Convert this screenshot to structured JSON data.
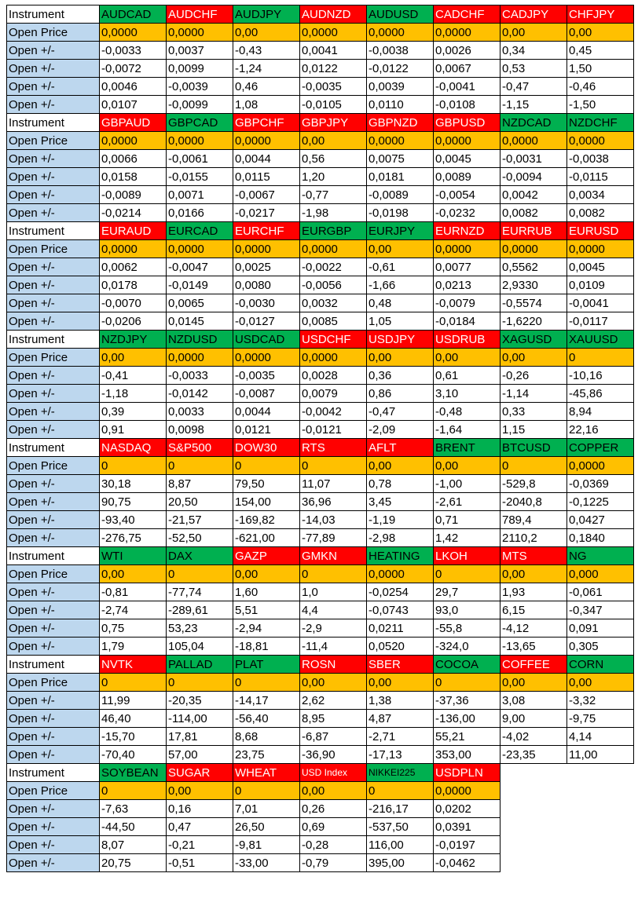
{
  "row_labels": {
    "instrument": "Instrument",
    "open_price": "Open Price",
    "delta": "Open +/-"
  },
  "colors": {
    "label_blue": "#bdd7ee",
    "instrument_red": "#ff0000",
    "instrument_green": "#00b050",
    "open_price_orange": "#ffc000"
  },
  "blocks": [
    {
      "instruments": [
        {
          "name": "AUDCAD",
          "color": "green",
          "open": "0,0000"
        },
        {
          "name": "AUDCHF",
          "color": "red",
          "open": "0,0000"
        },
        {
          "name": "AUDJPY",
          "color": "green",
          "open": "0,00"
        },
        {
          "name": "AUDNZD",
          "color": "red",
          "open": "0,0000"
        },
        {
          "name": "AUDUSD",
          "color": "green",
          "open": "0,0000"
        },
        {
          "name": "CADCHF",
          "color": "red",
          "open": "0,0000"
        },
        {
          "name": "CADJPY",
          "color": "red",
          "open": "0,00"
        },
        {
          "name": "CHFJPY",
          "color": "red",
          "open": "0,00"
        }
      ],
      "rows": [
        [
          "-0,0033",
          "0,0037",
          "-0,43",
          "0,0041",
          "-0,0038",
          "0,0026",
          "0,34",
          "0,45"
        ],
        [
          "-0,0072",
          "0,0099",
          "-1,24",
          "0,0122",
          "-0,0122",
          "0,0067",
          "0,53",
          "1,50"
        ],
        [
          "0,0046",
          "-0,0039",
          "0,46",
          "-0,0035",
          "0,0039",
          "-0,0041",
          "-0,47",
          "-0,46"
        ],
        [
          "0,0107",
          "-0,0099",
          "1,08",
          "-0,0105",
          "0,0110",
          "-0,0108",
          "-1,15",
          "-1,50"
        ]
      ]
    },
    {
      "instruments": [
        {
          "name": "GBPAUD",
          "color": "red",
          "open": "0,0000"
        },
        {
          "name": "GBPCAD",
          "color": "green",
          "open": "0,0000"
        },
        {
          "name": "GBPCHF",
          "color": "red",
          "open": "0,0000"
        },
        {
          "name": "GBPJPY",
          "color": "red",
          "open": "0,00"
        },
        {
          "name": "GBPNZD",
          "color": "red",
          "open": "0,0000"
        },
        {
          "name": "GBPUSD",
          "color": "red",
          "open": "0,0000"
        },
        {
          "name": "NZDCAD",
          "color": "green",
          "open": "0,0000"
        },
        {
          "name": "NZDCHF",
          "color": "green",
          "open": "0,0000"
        }
      ],
      "rows": [
        [
          "0,0066",
          "-0,0061",
          "0,0044",
          "0,56",
          "0,0075",
          "0,0045",
          "-0,0031",
          "-0,0038"
        ],
        [
          "0,0158",
          "-0,0155",
          "0,0115",
          "1,20",
          "0,0181",
          "0,0089",
          "-0,0094",
          "-0,0115"
        ],
        [
          "-0,0089",
          "0,0071",
          "-0,0067",
          "-0,77",
          "-0,0089",
          "-0,0054",
          "0,0042",
          "0,0034"
        ],
        [
          "-0,0214",
          "0,0166",
          "-0,0217",
          "-1,98",
          "-0,0198",
          "-0,0232",
          "0,0082",
          "0,0082"
        ]
      ]
    },
    {
      "instruments": [
        {
          "name": "EURAUD",
          "color": "red",
          "open": "0,0000"
        },
        {
          "name": "EURCAD",
          "color": "green",
          "open": "0,0000"
        },
        {
          "name": "EURCHF",
          "color": "red",
          "open": "0,0000"
        },
        {
          "name": "EURGBP",
          "color": "green",
          "open": "0,0000"
        },
        {
          "name": "EURJPY",
          "color": "green",
          "open": "0,00"
        },
        {
          "name": "EURNZD",
          "color": "red",
          "open": "0,0000"
        },
        {
          "name": "EURRUB",
          "color": "red",
          "open": "0,0000"
        },
        {
          "name": "EURUSD",
          "color": "red",
          "open": "0,0000"
        }
      ],
      "rows": [
        [
          "0,0062",
          "-0,0047",
          "0,0025",
          "-0,0022",
          "-0,61",
          "0,0077",
          "0,5562",
          "0,0045"
        ],
        [
          "0,0178",
          "-0,0149",
          "0,0080",
          "-0,0056",
          "-1,66",
          "0,0213",
          "2,9330",
          "0,0109"
        ],
        [
          "-0,0070",
          "0,0065",
          "-0,0030",
          "0,0032",
          "0,48",
          "-0,0079",
          "-0,5574",
          "-0,0041"
        ],
        [
          "-0,0206",
          "0,0145",
          "-0,0127",
          "0,0085",
          "1,05",
          "-0,0184",
          "-1,6220",
          "-0,0117"
        ]
      ]
    },
    {
      "instruments": [
        {
          "name": "NZDJPY",
          "color": "green",
          "open": "0,00"
        },
        {
          "name": "NZDUSD",
          "color": "green",
          "open": "0,0000"
        },
        {
          "name": "USDCAD",
          "color": "green",
          "open": "0,0000"
        },
        {
          "name": "USDCHF",
          "color": "red",
          "open": "0,0000"
        },
        {
          "name": "USDJPY",
          "color": "red",
          "open": "0,00"
        },
        {
          "name": "USDRUB",
          "color": "red",
          "open": "0,00"
        },
        {
          "name": "XAGUSD",
          "color": "green",
          "open": "0,00"
        },
        {
          "name": "XAUUSD",
          "color": "green",
          "open": "0"
        }
      ],
      "rows": [
        [
          "-0,41",
          "-0,0033",
          "-0,0035",
          "0,0028",
          "0,36",
          "0,61",
          "-0,26",
          "-10,16"
        ],
        [
          "-1,18",
          "-0,0142",
          "-0,0087",
          "0,0079",
          "0,86",
          "3,10",
          "-1,14",
          "-45,86"
        ],
        [
          "0,39",
          "0,0033",
          "0,0044",
          "-0,0042",
          "-0,47",
          "-0,48",
          "0,33",
          "8,94"
        ],
        [
          "0,91",
          "0,0098",
          "0,0121",
          "-0,0121",
          "-2,09",
          "-1,64",
          "1,15",
          "22,16"
        ]
      ]
    },
    {
      "instruments": [
        {
          "name": "NASDAQ",
          "color": "red",
          "open": "0"
        },
        {
          "name": "S&P500",
          "color": "red",
          "open": "0"
        },
        {
          "name": "DOW30",
          "color": "red",
          "open": "0"
        },
        {
          "name": "RTS",
          "color": "red",
          "open": "0"
        },
        {
          "name": "AFLT",
          "color": "red",
          "open": "0,00"
        },
        {
          "name": "BRENT",
          "color": "green",
          "open": "0,00"
        },
        {
          "name": "BTCUSD",
          "color": "green",
          "open": "0"
        },
        {
          "name": "COPPER",
          "color": "green",
          "open": "0,0000"
        }
      ],
      "rows": [
        [
          "30,18",
          "8,87",
          "79,50",
          "11,07",
          "0,78",
          "-1,00",
          "-529,8",
          "-0,0369"
        ],
        [
          "90,75",
          "20,50",
          "154,00",
          "36,96",
          "3,45",
          "-2,61",
          "-2040,8",
          "-0,1225"
        ],
        [
          "-93,40",
          "-21,57",
          "-169,82",
          "-14,03",
          "-1,19",
          "0,71",
          "789,4",
          "0,0427"
        ],
        [
          "-276,75",
          "-52,50",
          "-621,00",
          "-77,89",
          "-2,98",
          "1,42",
          "2110,2",
          "0,1840"
        ]
      ]
    },
    {
      "instruments": [
        {
          "name": "WTI",
          "color": "green",
          "open": "0,00"
        },
        {
          "name": "DAX",
          "color": "green",
          "open": "0"
        },
        {
          "name": "GAZP",
          "color": "red",
          "open": "0,00"
        },
        {
          "name": "GMKN",
          "color": "red",
          "open": "0"
        },
        {
          "name": "HEATING",
          "color": "green",
          "open": "0,0000"
        },
        {
          "name": "LKOH",
          "color": "red",
          "open": "0"
        },
        {
          "name": "MTS",
          "color": "red",
          "open": "0,00"
        },
        {
          "name": "NG",
          "color": "green",
          "open": "0,000"
        }
      ],
      "rows": [
        [
          "-0,81",
          "-77,74",
          "1,60",
          "1,0",
          "-0,0254",
          "29,7",
          "1,93",
          "-0,061"
        ],
        [
          "-2,74",
          "-289,61",
          "5,51",
          "4,4",
          "-0,0743",
          "93,0",
          "6,15",
          "-0,347"
        ],
        [
          "0,75",
          "53,23",
          "-2,94",
          "-2,9",
          "0,0211",
          "-55,8",
          "-4,12",
          "0,091"
        ],
        [
          "1,79",
          "105,04",
          "-18,81",
          "-11,4",
          "0,0520",
          "-324,0",
          "-13,65",
          "0,305"
        ]
      ]
    },
    {
      "instruments": [
        {
          "name": "NVTK",
          "color": "red",
          "open": "0"
        },
        {
          "name": "PALLAD",
          "color": "green",
          "open": "0"
        },
        {
          "name": "PLAT",
          "color": "green",
          "open": "0"
        },
        {
          "name": "ROSN",
          "color": "red",
          "open": "0,00"
        },
        {
          "name": "SBER",
          "color": "red",
          "open": "0,00"
        },
        {
          "name": "COCOA",
          "color": "green",
          "open": "0"
        },
        {
          "name": "COFFEE",
          "color": "red",
          "open": "0,00"
        },
        {
          "name": "CORN",
          "color": "green",
          "open": "0,00"
        }
      ],
      "rows": [
        [
          "11,99",
          "-20,35",
          "-14,17",
          "2,62",
          "1,38",
          "-37,36",
          "3,08",
          "-3,32"
        ],
        [
          "46,40",
          "-114,00",
          "-56,40",
          "8,95",
          "4,87",
          "-136,00",
          "9,00",
          "-9,75"
        ],
        [
          "-15,70",
          "17,81",
          "8,68",
          "-6,87",
          "-2,71",
          "55,21",
          "-4,02",
          "4,14"
        ],
        [
          "-70,40",
          "57,00",
          "23,75",
          "-36,90",
          "-17,13",
          "353,00",
          "-23,35",
          "11,00"
        ]
      ]
    },
    {
      "instruments": [
        {
          "name": "SOYBEAN",
          "color": "green",
          "open": "0"
        },
        {
          "name": "SUGAR",
          "color": "red",
          "open": "0,00"
        },
        {
          "name": "WHEAT",
          "color": "red",
          "open": "0"
        },
        {
          "name": "USD Index",
          "color": "red",
          "open": "0,00"
        },
        {
          "name": "NIKKEI225",
          "color": "green",
          "open": "0"
        },
        {
          "name": "USDPLN",
          "color": "red",
          "open": "0,0000"
        }
      ],
      "rows": [
        [
          "-7,63",
          "0,16",
          "7,01",
          "0,26",
          "-216,17",
          "0,0202"
        ],
        [
          "-44,50",
          "0,47",
          "26,50",
          "0,69",
          "-537,50",
          "0,0391"
        ],
        [
          "8,07",
          "-0,21",
          "-9,81",
          "-0,28",
          "116,00",
          "-0,0197"
        ],
        [
          "20,75",
          "-0,51",
          "-33,00",
          "-0,79",
          "395,00",
          "-0,0462"
        ]
      ]
    }
  ]
}
